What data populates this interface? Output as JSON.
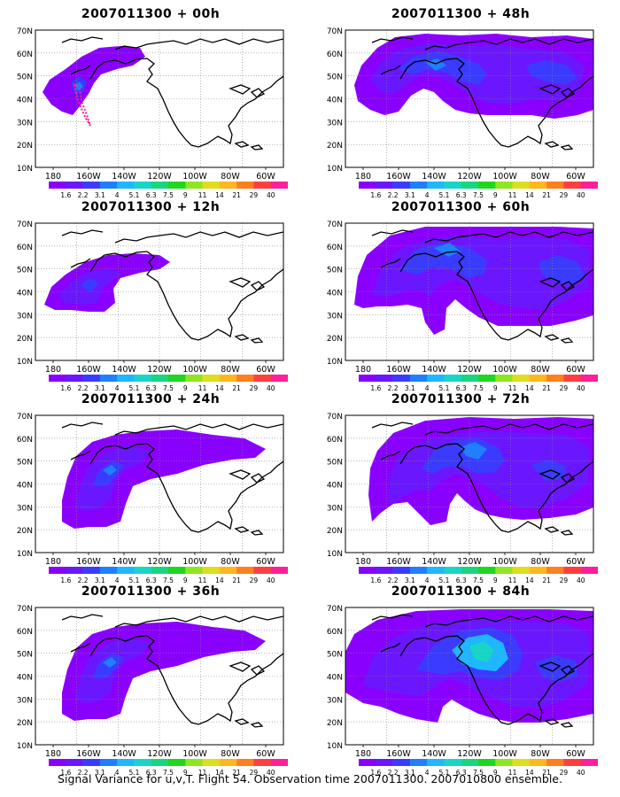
{
  "panels": [
    {
      "title": "2007011300 + 00h",
      "level": 0
    },
    {
      "title": "2007011300 + 48h",
      "level": 3
    },
    {
      "title": "2007011300 + 12h",
      "level": 1
    },
    {
      "title": "2007011300 + 60h",
      "level": 4
    },
    {
      "title": "2007011300 + 24h",
      "level": 2
    },
    {
      "title": "2007011300 + 72h",
      "level": 5
    },
    {
      "title": "2007011300 + 36h",
      "level": 2
    },
    {
      "title": "2007011300 + 84h",
      "level": 6
    }
  ],
  "lat_labels": [
    "70N",
    "60N",
    "50N",
    "40N",
    "30N",
    "20N",
    "10N"
  ],
  "lon_labels": [
    "180",
    "160W",
    "140W",
    "120W",
    "100W",
    "80W",
    "60W"
  ],
  "colorbar": {
    "labels": [
      "1.6",
      "2.2",
      "3.1",
      "4",
      "5.1",
      "6.3",
      "7.5",
      "9",
      "11",
      "14",
      "21",
      "29",
      "40"
    ],
    "colors": [
      "#8a00ff",
      "#6a17ff",
      "#3b3bff",
      "#1f7fff",
      "#1fb7ff",
      "#17d6c8",
      "#17d680",
      "#1fd61f",
      "#8ee61f",
      "#dede1f",
      "#ffb71f",
      "#ff7f1f",
      "#ff3f3f",
      "#ff1f9a"
    ]
  },
  "footer": "Signal Variance for u,v,T. Flight 54. Observation time 2007011300. 2007010800 ensemble."
}
